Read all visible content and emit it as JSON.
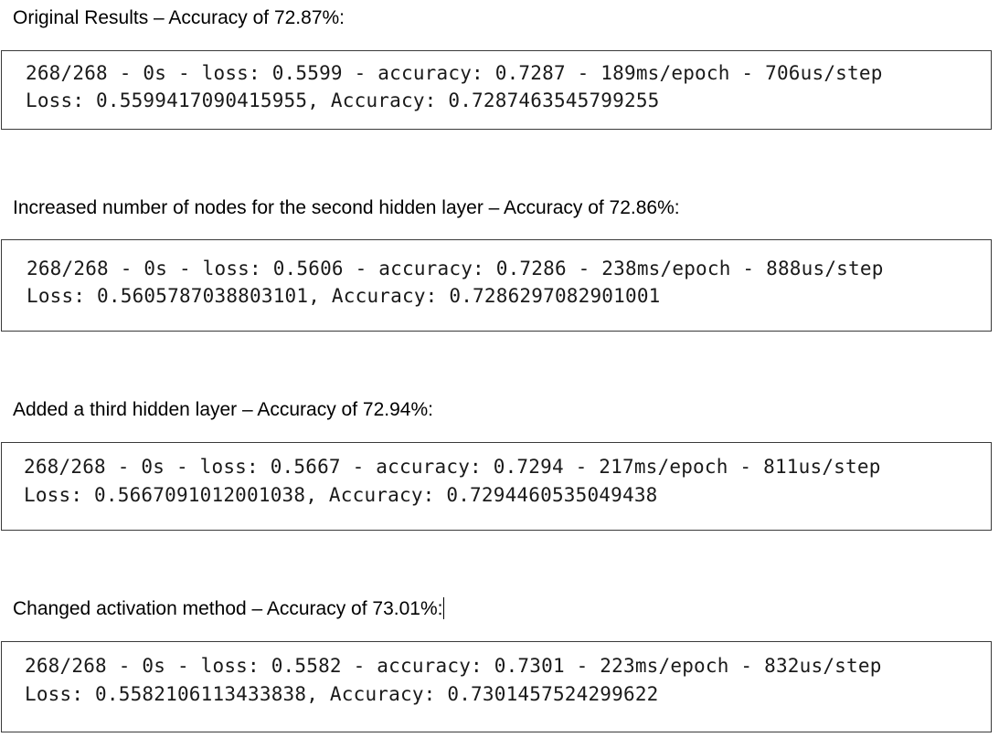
{
  "sections": [
    {
      "heading": "Original Results – Accuracy of 72.87%:",
      "line1": "268/268 - 0s - loss: 0.5599 - accuracy: 0.7287 - 189ms/epoch - 706us/step",
      "line2": "Loss: 0.5599417090415955, Accuracy: 0.7287463545799255"
    },
    {
      "heading": "Increased number of nodes for the second hidden layer – Accuracy of 72.86%:",
      "line1": "268/268 - 0s - loss: 0.5606 - accuracy: 0.7286 - 238ms/epoch - 888us/step",
      "line2": "Loss: 0.5605787038803101, Accuracy: 0.7286297082901001"
    },
    {
      "heading": "Added a third hidden layer – Accuracy of 72.94%:",
      "line1": "268/268 - 0s - loss: 0.5667 - accuracy: 0.7294 - 217ms/epoch - 811us/step",
      "line2": "Loss: 0.5667091012001038, Accuracy: 0.7294460535049438"
    },
    {
      "heading": "Changed activation method – Accuracy of 73.01%:",
      "line1": "268/268 - 0s - loss: 0.5582 - accuracy: 0.7301 - 223ms/epoch - 832us/step",
      "line2": "Loss: 0.5582106113433838, Accuracy: 0.7301457524299622"
    }
  ]
}
